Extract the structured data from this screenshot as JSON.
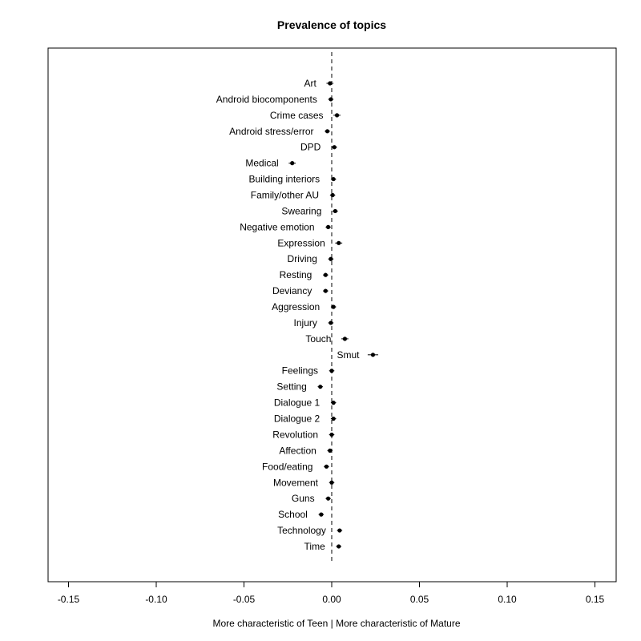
{
  "chart_data": {
    "type": "scatter",
    "title": "Prevalence of topics",
    "xlabel": "More characteristic of Teen | More characteristic of Mature",
    "ylabel": "",
    "xlim": [
      -0.162,
      0.162
    ],
    "xticks": [
      -0.15,
      -0.1,
      -0.05,
      0.0,
      0.05,
      0.1,
      0.15
    ],
    "xtick_labels": [
      "-0.15",
      "-0.10",
      "-0.05",
      "0.00",
      "0.05",
      "0.10",
      "0.15"
    ],
    "reference_line": 0,
    "grid": false,
    "legend": "none",
    "points": [
      {
        "label": "Art",
        "value": -0.001,
        "low": -0.003,
        "high": 0.001
      },
      {
        "label": "Android biocomponents",
        "value": -0.0005,
        "low": -0.002,
        "high": 0.001
      },
      {
        "label": "Crime cases",
        "value": 0.003,
        "low": 0.001,
        "high": 0.005
      },
      {
        "label": "Android stress/error",
        "value": -0.0025,
        "low": -0.004,
        "high": -0.001
      },
      {
        "label": "DPD",
        "value": 0.0015,
        "low": 0.0,
        "high": 0.003
      },
      {
        "label": "Medical",
        "value": -0.0225,
        "low": -0.0245,
        "high": -0.0205
      },
      {
        "label": "Building interiors",
        "value": 0.001,
        "low": -0.0005,
        "high": 0.0025
      },
      {
        "label": "Family/other AU",
        "value": 0.0005,
        "low": -0.001,
        "high": 0.002
      },
      {
        "label": "Swearing",
        "value": 0.002,
        "low": 0.0005,
        "high": 0.0035
      },
      {
        "label": "Negative emotion",
        "value": -0.002,
        "low": -0.0035,
        "high": -0.0005
      },
      {
        "label": "Expression",
        "value": 0.004,
        "low": 0.002,
        "high": 0.006
      },
      {
        "label": "Driving",
        "value": -0.0005,
        "low": -0.002,
        "high": 0.001
      },
      {
        "label": "Resting",
        "value": -0.0035,
        "low": -0.005,
        "high": -0.002
      },
      {
        "label": "Deviancy",
        "value": -0.0035,
        "low": -0.005,
        "high": -0.002
      },
      {
        "label": "Aggression",
        "value": 0.001,
        "low": -0.0005,
        "high": 0.0025
      },
      {
        "label": "Injury",
        "value": -0.0005,
        "low": -0.002,
        "high": 0.001
      },
      {
        "label": "Touch",
        "value": 0.0075,
        "low": 0.0055,
        "high": 0.0095
      },
      {
        "label": "Smut",
        "value": 0.0235,
        "low": 0.0205,
        "high": 0.0265
      },
      {
        "label": "Feelings",
        "value": 0.0,
        "low": -0.0015,
        "high": 0.0015
      },
      {
        "label": "Setting",
        "value": -0.0065,
        "low": -0.008,
        "high": -0.005
      },
      {
        "label": "Dialogue 1",
        "value": 0.001,
        "low": -0.0005,
        "high": 0.0025
      },
      {
        "label": "Dialogue 2",
        "value": 0.001,
        "low": -0.0005,
        "high": 0.0025
      },
      {
        "label": "Revolution",
        "value": 0.0,
        "low": -0.0015,
        "high": 0.0015
      },
      {
        "label": "Affection",
        "value": -0.001,
        "low": -0.0025,
        "high": 0.0005
      },
      {
        "label": "Food/eating",
        "value": -0.003,
        "low": -0.0045,
        "high": -0.0015
      },
      {
        "label": "Movement",
        "value": 0.0,
        "low": -0.0015,
        "high": 0.0015
      },
      {
        "label": "Guns",
        "value": -0.002,
        "low": -0.0035,
        "high": -0.0005
      },
      {
        "label": "School",
        "value": -0.006,
        "low": -0.0075,
        "high": -0.0045
      },
      {
        "label": "Technology",
        "value": 0.0045,
        "low": 0.003,
        "high": 0.006
      },
      {
        "label": "Time",
        "value": 0.004,
        "low": 0.0025,
        "high": 0.0055
      }
    ]
  }
}
